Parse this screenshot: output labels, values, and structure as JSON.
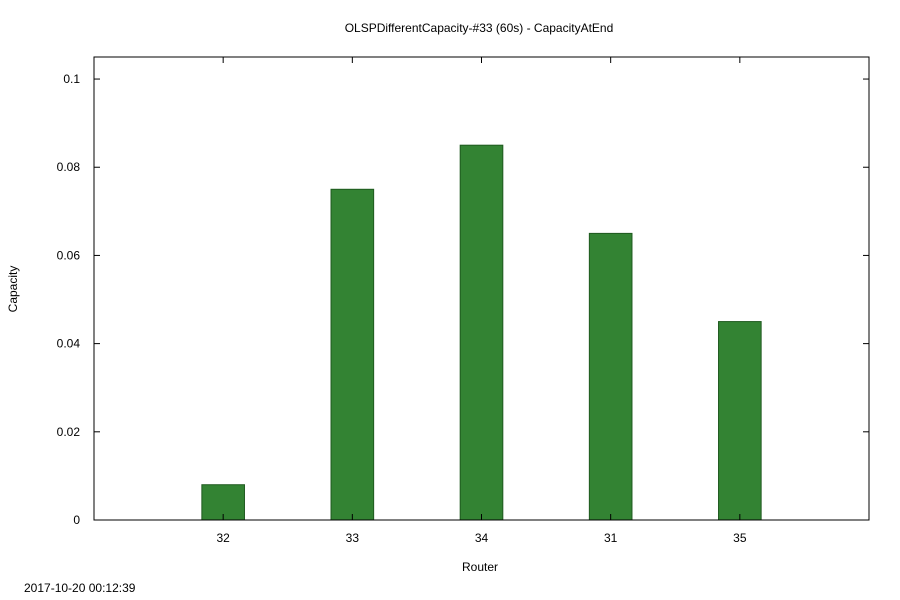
{
  "chart_data": {
    "type": "bar",
    "title": "OLSPDifferentCapacity-#33 (60s) - CapacityAtEnd",
    "xlabel": "Router",
    "ylabel": "Capacity",
    "categories": [
      "32",
      "33",
      "34",
      "31",
      "35"
    ],
    "values": [
      0.008,
      0.075,
      0.085,
      0.065,
      0.045
    ],
    "ylim": [
      0,
      0.105
    ],
    "yticks": [
      0,
      0.02,
      0.04,
      0.06,
      0.08,
      0.1
    ],
    "ytick_labels": [
      "0",
      "0.02",
      "0.04",
      "0.06",
      "0.08",
      "0.1"
    ],
    "bar_color": "#338333",
    "grid": false,
    "legend": "none"
  },
  "timestamp": "2017-10-20 00:12:39"
}
